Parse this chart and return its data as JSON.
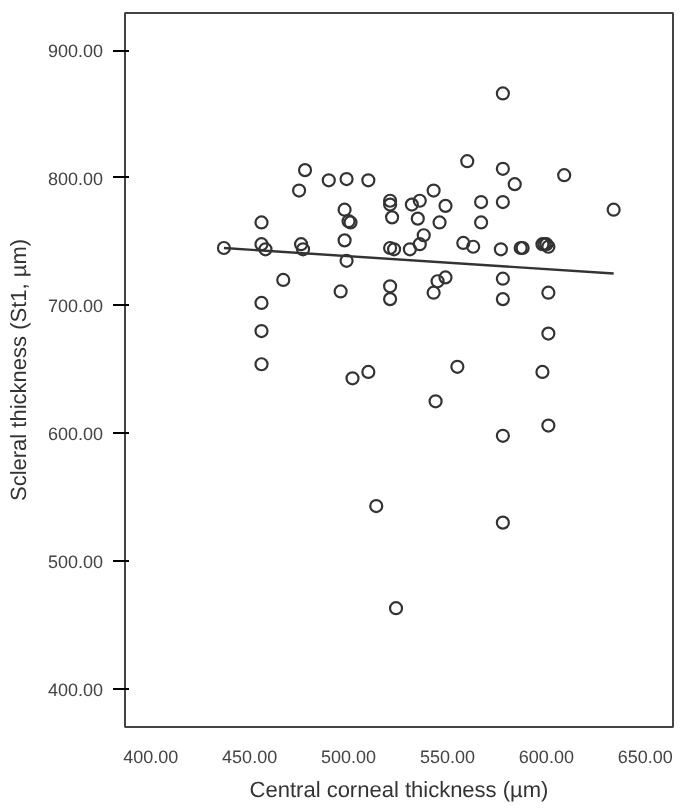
{
  "chart_data": {
    "type": "scatter",
    "xlabel": "Central corneal thickness (µm)",
    "ylabel": "Scleral thickness (St1, µm)",
    "xlim": [
      387,
      664
    ],
    "ylim": [
      370,
      929
    ],
    "xticks": [
      {
        "value": 400,
        "label": "400.00"
      },
      {
        "value": 450,
        "label": "450.00"
      },
      {
        "value": 500,
        "label": "500.00"
      },
      {
        "value": 550,
        "label": "550.00"
      },
      {
        "value": 600,
        "label": "600.00"
      },
      {
        "value": 650,
        "label": "650.00"
      }
    ],
    "yticks": [
      {
        "value": 400,
        "label": "400.00"
      },
      {
        "value": 500,
        "label": "500.00"
      },
      {
        "value": 600,
        "label": "600.00"
      },
      {
        "value": 700,
        "label": "700.00"
      },
      {
        "value": 800,
        "label": "800.00"
      },
      {
        "value": 900,
        "label": "900.00"
      }
    ],
    "grid": false,
    "series": [
      {
        "marker": "circle",
        "color": "#333333",
        "x": [
          437,
          456,
          456,
          458,
          456,
          456,
          456,
          467,
          475,
          478,
          476,
          477,
          490,
          499,
          510,
          498,
          500,
          501,
          498,
          499,
          496,
          521,
          521,
          522,
          521,
          523,
          521,
          521,
          531,
          532,
          536,
          535,
          543,
          549,
          546,
          538,
          536,
          549,
          545,
          543,
          560,
          567,
          567,
          558,
          563,
          578,
          578,
          584,
          578,
          577,
          578,
          578,
          587,
          588,
          598,
          599,
          601,
          600,
          601,
          601,
          598,
          609,
          634,
          502,
          510,
          555,
          544,
          578,
          601,
          514,
          578,
          524
        ],
        "values": [
          745,
          765,
          748,
          744,
          702,
          680,
          654,
          720,
          790,
          806,
          748,
          744,
          798,
          799,
          798,
          775,
          766,
          765,
          751,
          735,
          711,
          782,
          779,
          769,
          745,
          744,
          715,
          705,
          744,
          779,
          782,
          768,
          790,
          778,
          765,
          755,
          748,
          722,
          719,
          710,
          813,
          781,
          765,
          749,
          746,
          866,
          807,
          795,
          781,
          744,
          721,
          705,
          745,
          745,
          748,
          748,
          746,
          748,
          710,
          678,
          648,
          802,
          775,
          643,
          648,
          652,
          625,
          598,
          606,
          543,
          530,
          463
        ]
      },
      {
        "type": "line",
        "color": "#333333",
        "x": [
          437,
          634
        ],
        "values": [
          745,
          725
        ]
      }
    ]
  }
}
